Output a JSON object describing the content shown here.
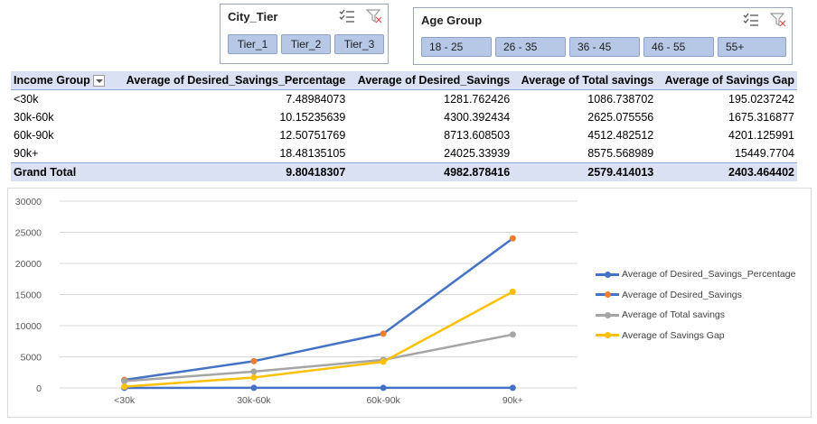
{
  "slicers": {
    "city_tier": {
      "title": "City_Tier",
      "items": [
        "Tier_1",
        "Tier_2",
        "Tier_3"
      ]
    },
    "age_group": {
      "title": "Age Group",
      "items": [
        "18 - 25",
        "26 - 35",
        "36 - 45",
        "46 - 55",
        "55+"
      ]
    }
  },
  "pivot": {
    "headers": {
      "row_label": "Income Group",
      "c1": "Average of Desired_Savings_Percentage",
      "c2": "Average of Desired_Savings",
      "c3": "Average of Total savings",
      "c4": "Average of Savings Gap"
    },
    "rows": [
      {
        "label": "<30k",
        "c1": "7.48984073",
        "c2": "1281.762426",
        "c3": "1086.738702",
        "c4": "195.0237242"
      },
      {
        "label": "30k-60k",
        "c1": "10.15235639",
        "c2": "4300.392434",
        "c3": "2625.075556",
        "c4": "1675.316877"
      },
      {
        "label": "60k-90k",
        "c1": "12.50751769",
        "c2": "8713.608503",
        "c3": "4512.482512",
        "c4": "4201.125991"
      },
      {
        "label": "90k+",
        "c1": "18.48135105",
        "c2": "24025.33939",
        "c3": "8575.568989",
        "c4": "15449.7704"
      }
    ],
    "total": {
      "label": "Grand Total",
      "c1": "9.80418307",
      "c2": "4982.878416",
      "c3": "2579.414013",
      "c4": "2403.464402"
    }
  },
  "chart_data": {
    "type": "line",
    "categories": [
      "<30k",
      "30k-60k",
      "60k-90k",
      "90k+"
    ],
    "ylim": [
      0,
      30000
    ],
    "yticks": [
      0,
      5000,
      10000,
      15000,
      20000,
      25000,
      30000
    ],
    "grid": true,
    "legend": "right",
    "series": [
      {
        "name": "Average of Desired_Savings_Percentage",
        "values": [
          7.48984073,
          10.15235639,
          12.50751769,
          18.48135105
        ],
        "color": "#4472c4",
        "marker": "#4472c4"
      },
      {
        "name": "Average of Desired_Savings",
        "values": [
          1281.762426,
          4300.392434,
          8713.608503,
          24025.33939
        ],
        "color": "#4472c4",
        "marker": "#ed7d31"
      },
      {
        "name": "Average of Total savings",
        "values": [
          1086.738702,
          2625.075556,
          4512.482512,
          8575.568989
        ],
        "color": "#a5a5a5",
        "marker": "#a5a5a5"
      },
      {
        "name": "Average of Savings Gap",
        "values": [
          195.0237242,
          1675.316877,
          4201.125991,
          15449.7704
        ],
        "color": "#ffc000",
        "marker": "#ffc000"
      }
    ]
  }
}
